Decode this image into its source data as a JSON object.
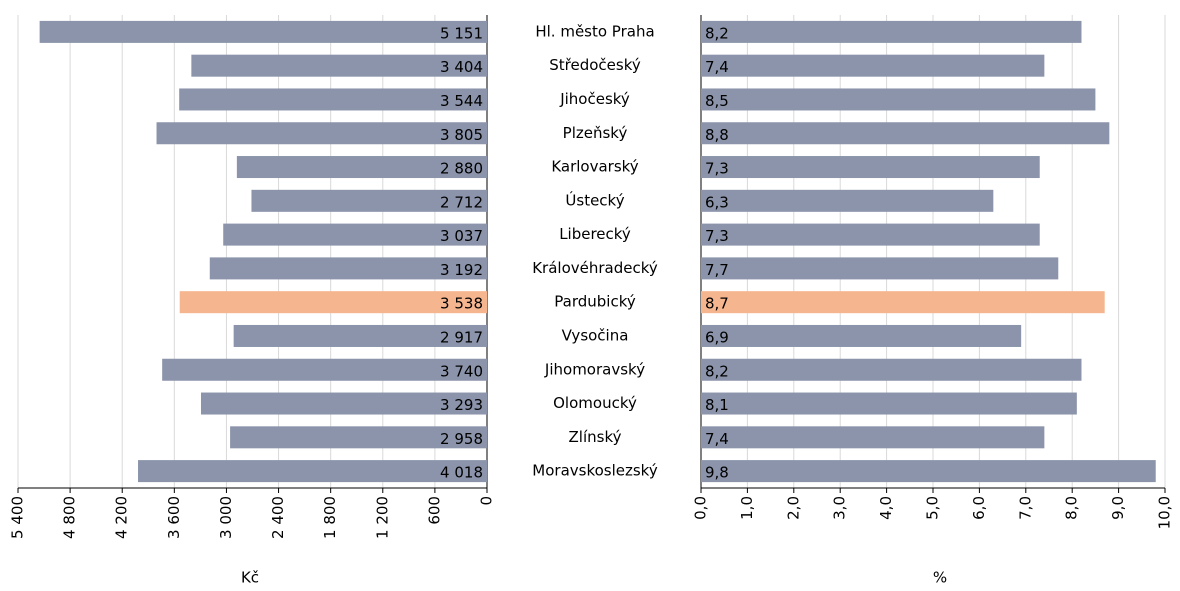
{
  "chart_data": [
    {
      "type": "bar",
      "orientation": "horizontal",
      "reversed": true,
      "x_label": "Kč",
      "categories": [
        "Hl. město Praha",
        "Středočeský",
        "Jihočeský",
        "Plzeňský",
        "Karlovarský",
        "Ústecký",
        "Liberecký",
        "Královéhradecký",
        "Pardubický",
        "Vysočina",
        "Jihomoravský",
        "Olomoucký",
        "Zlínský",
        "Moravskoslezský"
      ],
      "values": [
        5151,
        3404,
        3544,
        3805,
        2880,
        2712,
        3037,
        3192,
        3538,
        2917,
        3740,
        3293,
        2958,
        4018
      ],
      "value_labels": [
        "5 151",
        "3 404",
        "3 544",
        "3 805",
        "2 880",
        "2 712",
        "3 037",
        "3 192",
        "3 538",
        "2 917",
        "3 740",
        "3 293",
        "2 958",
        "4 018"
      ],
      "colors": [
        "#8b94aa",
        "#8b94aa",
        "#8b94aa",
        "#8b94aa",
        "#8b94aa",
        "#8b94aa",
        "#8b94aa",
        "#8b94aa",
        "#f4b58f",
        "#8b94aa",
        "#8b94aa",
        "#8b94aa",
        "#8b94aa",
        "#8b94aa"
      ],
      "xlim": [
        0,
        5400
      ],
      "xticks": [
        0,
        600,
        {
          "value": 1200,
          "label": "1 200"
        },
        {
          "value": 1800,
          "label": "1 800"
        },
        {
          "value": 2400,
          "label": "2 400"
        },
        {
          "value": 3000,
          "label": "3 000"
        },
        {
          "value": 3600,
          "label": "3 600"
        },
        {
          "value": 4200,
          "label": "4 200"
        },
        {
          "value": 4800,
          "label": "4 800"
        },
        {
          "value": 5400,
          "label": "5 400"
        }
      ],
      "grid": true
    },
    {
      "type": "bar",
      "orientation": "horizontal",
      "reversed": false,
      "x_label": "%",
      "values": [
        8.2,
        7.4,
        8.5,
        8.8,
        7.3,
        6.3,
        7.3,
        7.7,
        8.7,
        6.9,
        8.2,
        8.1,
        7.4,
        9.8
      ],
      "value_labels": [
        "8,2",
        "7,4",
        "8,5",
        "8,8",
        "7,3",
        "6,3",
        "7,3",
        "7,7",
        "8,7",
        "6,9",
        "8,2",
        "8,1",
        "7,4",
        "9,8"
      ],
      "colors": [
        "#8b94aa",
        "#8b94aa",
        "#8b94aa",
        "#8b94aa",
        "#8b94aa",
        "#8b94aa",
        "#8b94aa",
        "#8b94aa",
        "#f4b58f",
        "#8b94aa",
        "#8b94aa",
        "#8b94aa",
        "#8b94aa",
        "#8b94aa"
      ],
      "xlim": [
        0,
        10
      ],
      "xticks": [
        {
          "value": 0,
          "label": "0,0"
        },
        {
          "value": 1,
          "label": "1,0"
        },
        {
          "value": 2,
          "label": "2,0"
        },
        {
          "value": 3,
          "label": "3,0"
        },
        {
          "value": 4,
          "label": "4,0"
        },
        {
          "value": 5,
          "label": "5,0"
        },
        {
          "value": 6,
          "label": "6,0"
        },
        {
          "value": 7,
          "label": "7,0"
        },
        {
          "value": 8,
          "label": "8,0"
        },
        {
          "value": 9,
          "label": "9,0"
        },
        {
          "value": 10,
          "label": "10,0"
        }
      ],
      "grid": true
    }
  ]
}
